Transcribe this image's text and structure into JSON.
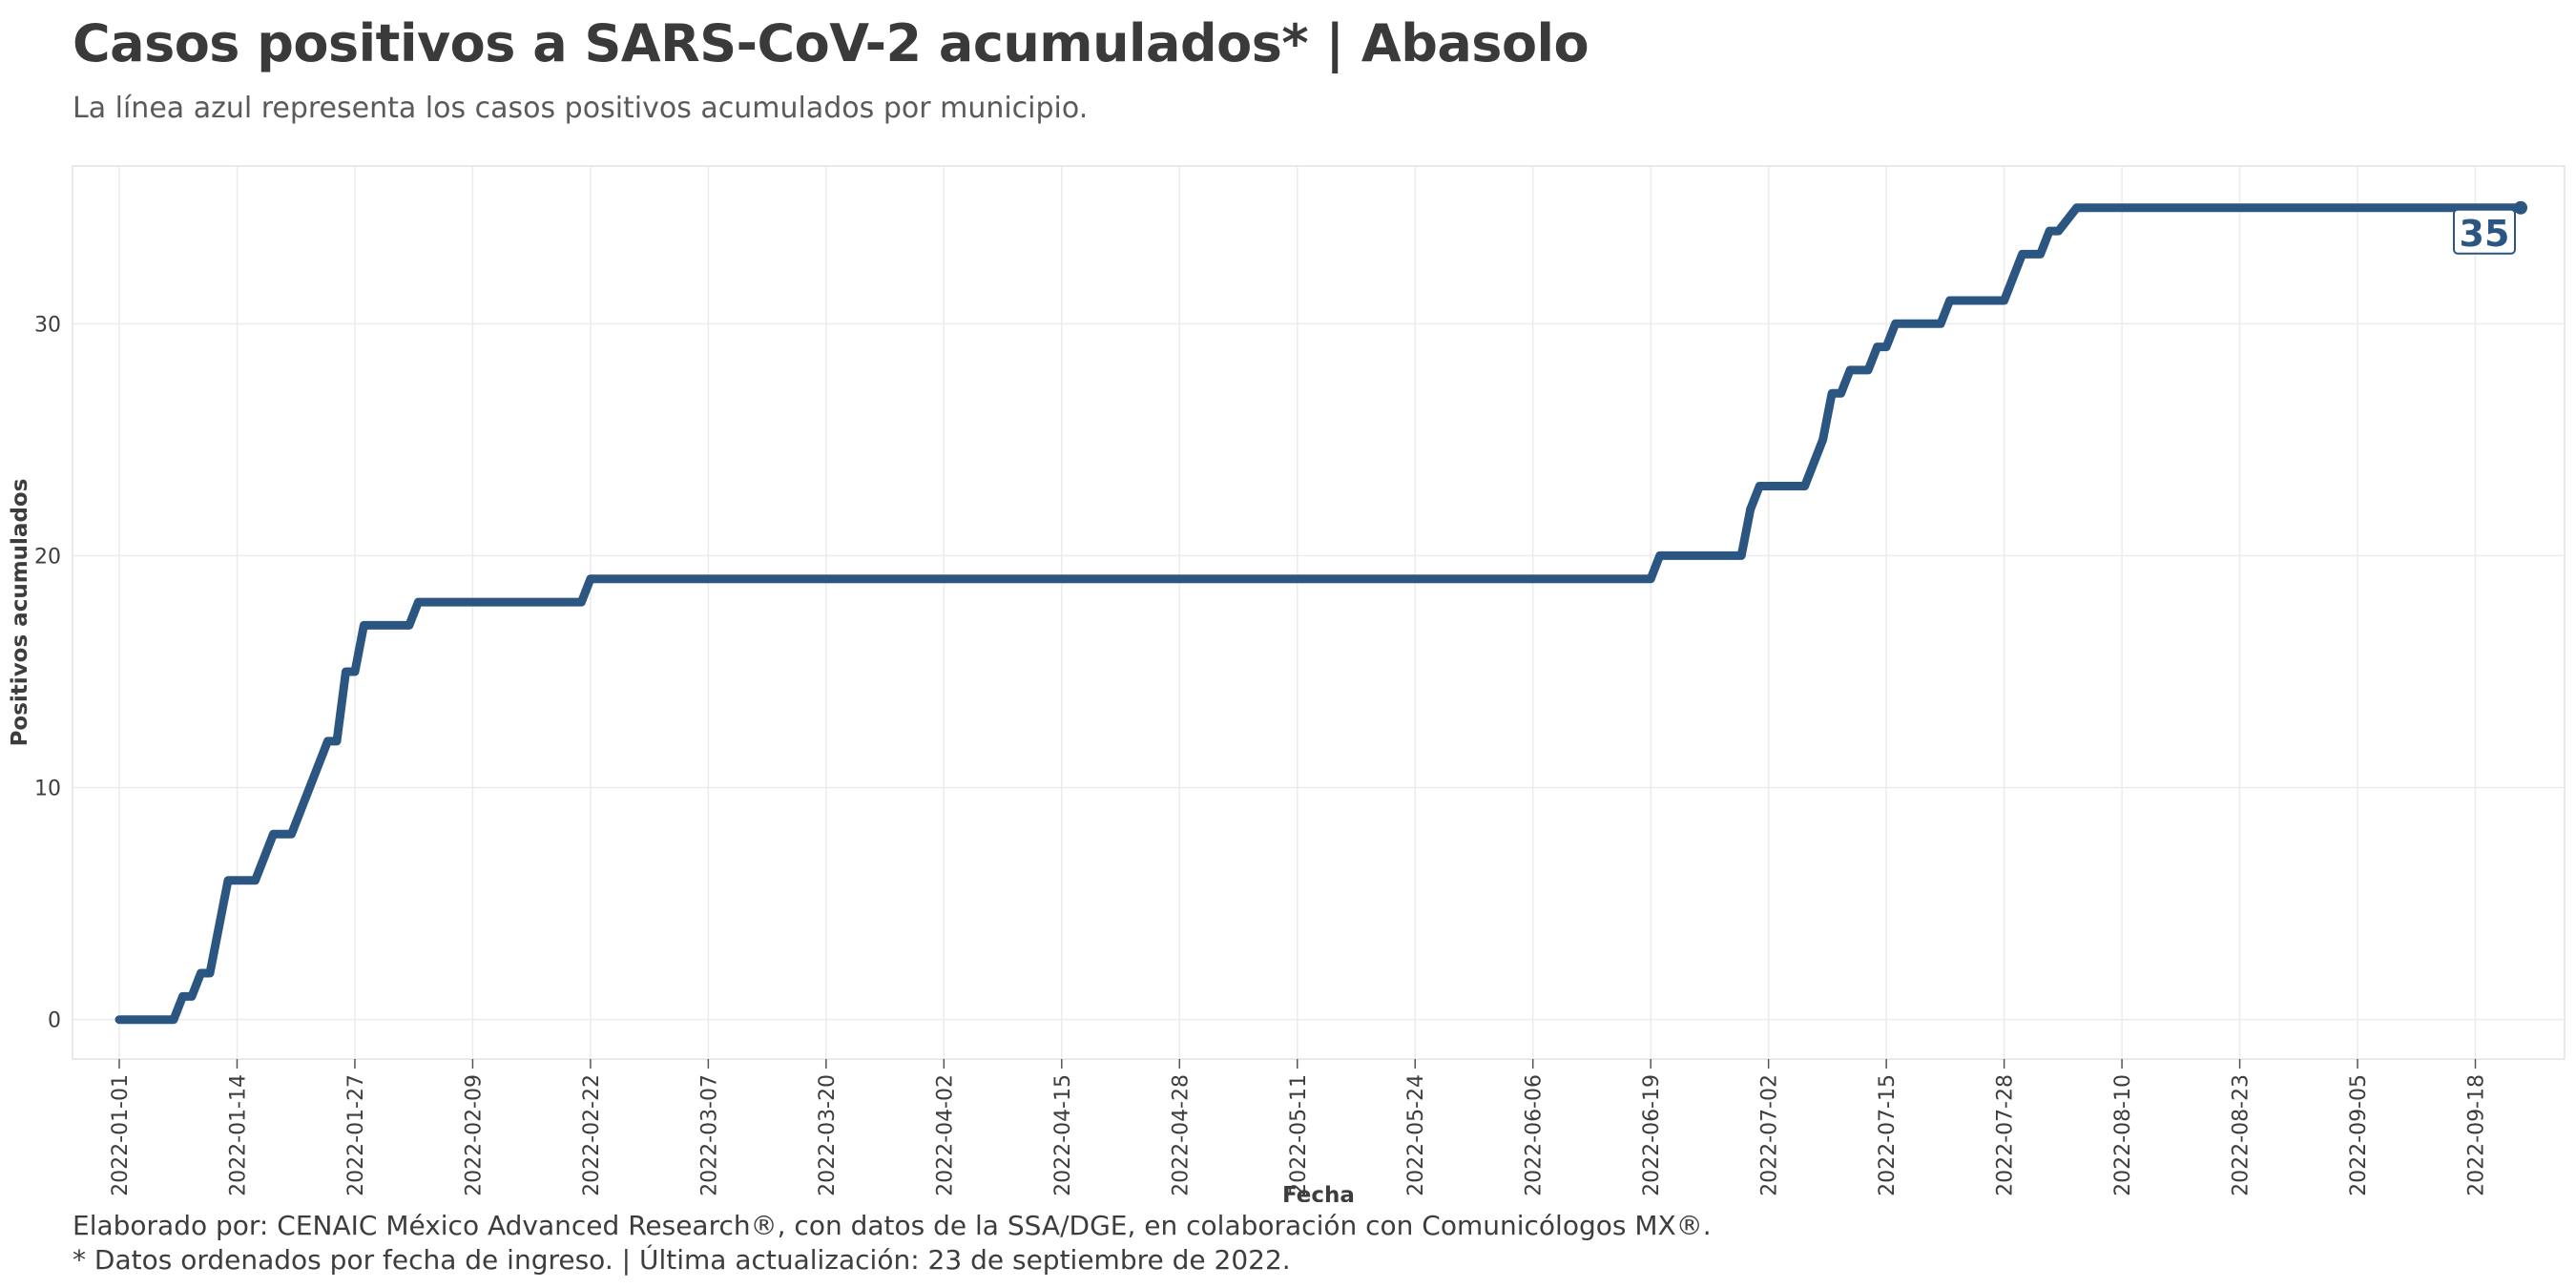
{
  "header": {
    "title": "Casos positivos a SARS-CoV-2 acumulados* | Abasolo",
    "subtitle": "La línea azul representa los casos positivos acumulados por municipio."
  },
  "footer": {
    "credit": "Elaborado por: CENAIC México Advanced Research®, con datos de la SSA/DGE, en colaboración con Comunicólogos MX®.",
    "note": "* Datos ordenados por fecha de ingreso. | Última actualización: 23 de septiembre de 2022."
  },
  "colors": {
    "line": "#2c5682",
    "grid": "#ebebeb",
    "text": "#3d3d3d"
  },
  "chart_data": {
    "type": "line",
    "xlabel": "Fecha",
    "ylabel": "Positivos acumulados",
    "xlim": [
      "2022-01-01",
      "2022-09-23"
    ],
    "ylim": [
      -1.7,
      36.8
    ],
    "yticks": [
      0,
      10,
      20,
      30
    ],
    "xticks": [
      "2022-01-01",
      "2022-01-14",
      "2022-01-27",
      "2022-02-09",
      "2022-02-22",
      "2022-03-07",
      "2022-03-20",
      "2022-04-02",
      "2022-04-15",
      "2022-04-28",
      "2022-05-11",
      "2022-05-24",
      "2022-06-06",
      "2022-06-19",
      "2022-07-02",
      "2022-07-15",
      "2022-07-28",
      "2022-08-10",
      "2022-08-23",
      "2022-09-05",
      "2022-09-18"
    ],
    "grid": true,
    "end_label": "35",
    "series": [
      {
        "points": [
          [
            "2022-01-01",
            0
          ],
          [
            "2022-01-07",
            0
          ],
          [
            "2022-01-08",
            1
          ],
          [
            "2022-01-09",
            1
          ],
          [
            "2022-01-10",
            2
          ],
          [
            "2022-01-11",
            2
          ],
          [
            "2022-01-13",
            6
          ],
          [
            "2022-01-16",
            6
          ],
          [
            "2022-01-18",
            8
          ],
          [
            "2022-01-20",
            8
          ],
          [
            "2022-01-24",
            12
          ],
          [
            "2022-01-25",
            12
          ],
          [
            "2022-01-26",
            15
          ],
          [
            "2022-01-27",
            15
          ],
          [
            "2022-01-28",
            17
          ],
          [
            "2022-02-02",
            17
          ],
          [
            "2022-02-03",
            18
          ],
          [
            "2022-02-21",
            18
          ],
          [
            "2022-02-22",
            19
          ],
          [
            "2022-06-19",
            19
          ],
          [
            "2022-06-20",
            20
          ],
          [
            "2022-06-29",
            20
          ],
          [
            "2022-06-30",
            22
          ],
          [
            "2022-07-01",
            23
          ],
          [
            "2022-07-06",
            23
          ],
          [
            "2022-07-08",
            25
          ],
          [
            "2022-07-09",
            27
          ],
          [
            "2022-07-10",
            27
          ],
          [
            "2022-07-11",
            28
          ],
          [
            "2022-07-13",
            28
          ],
          [
            "2022-07-14",
            29
          ],
          [
            "2022-07-15",
            29
          ],
          [
            "2022-07-16",
            30
          ],
          [
            "2022-07-21",
            30
          ],
          [
            "2022-07-22",
            31
          ],
          [
            "2022-07-28",
            31
          ],
          [
            "2022-07-30",
            33
          ],
          [
            "2022-08-01",
            33
          ],
          [
            "2022-08-02",
            34
          ],
          [
            "2022-08-03",
            34
          ],
          [
            "2022-08-05",
            35
          ],
          [
            "2022-09-23",
            35
          ]
        ]
      }
    ]
  }
}
